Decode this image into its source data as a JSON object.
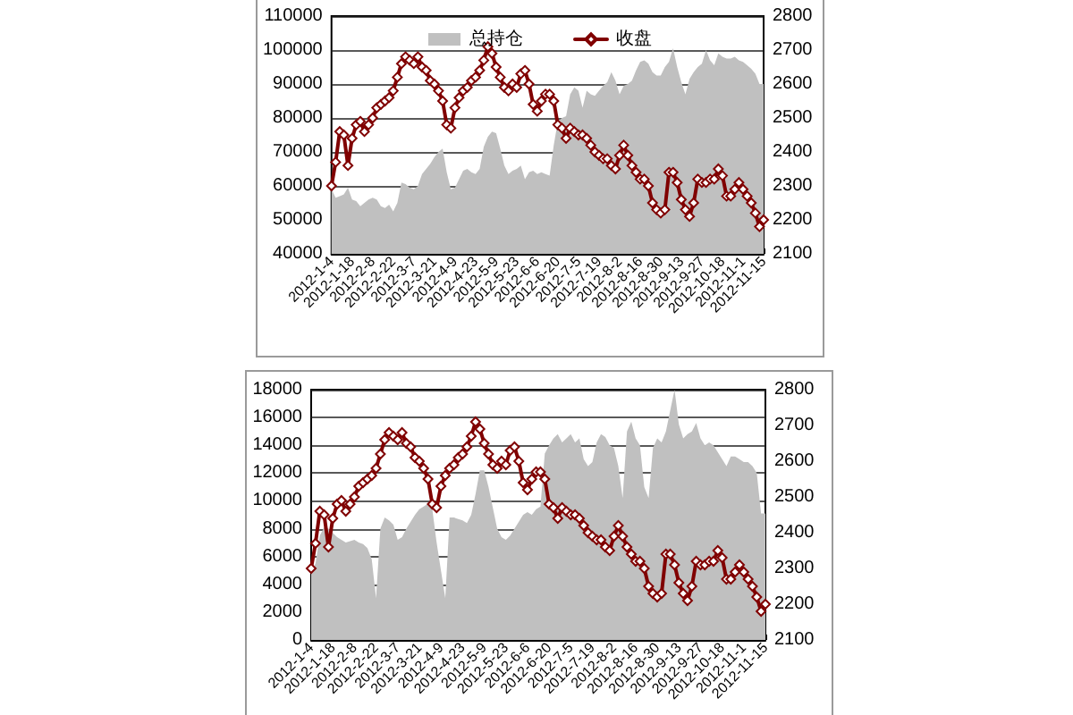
{
  "chart_data": [
    {
      "type": "area",
      "categories": [
        "2012-1-4",
        null,
        null,
        null,
        null,
        "2012-1-18",
        null,
        null,
        null,
        null,
        "2012-2-8",
        null,
        null,
        null,
        null,
        "2012-2-22",
        null,
        null,
        null,
        null,
        "2012-3-7",
        null,
        null,
        null,
        null,
        "2012-3-21",
        null,
        null,
        null,
        null,
        "2012-4-9",
        null,
        null,
        null,
        null,
        "2012-4-23",
        null,
        null,
        null,
        null,
        "2012-5-9",
        null,
        null,
        null,
        null,
        "2012-5-23",
        null,
        null,
        null,
        null,
        "2012-6-6",
        null,
        null,
        null,
        null,
        "2012-6-20",
        null,
        null,
        null,
        null,
        "2012-7-5",
        null,
        null,
        null,
        null,
        "2012-7-19",
        null,
        null,
        null,
        null,
        "2012-8-2",
        null,
        null,
        null,
        null,
        "2012-8-16",
        null,
        null,
        null,
        null,
        "2012-8-30",
        null,
        null,
        null,
        null,
        "2012-9-13",
        null,
        null,
        null,
        null,
        "2012-9-27",
        null,
        null,
        null,
        null,
        "2012-10-18",
        null,
        null,
        null,
        null,
        "2012-11-1",
        null,
        null,
        null,
        null,
        "2012-11-15"
      ],
      "ylim": [
        40000,
        110000
      ],
      "yticks": [
        40000,
        50000,
        60000,
        70000,
        80000,
        90000,
        100000,
        110000
      ],
      "y2lim": [
        2100,
        2800
      ],
      "y2ticks": [
        2100,
        2200,
        2300,
        2400,
        2500,
        2600,
        2700,
        2800
      ],
      "grid": "y",
      "legend": "top",
      "series": [
        {
          "name": "总持仓",
          "color": "#c0c0c0",
          "values": [
            59000,
            56500,
            57000,
            57500,
            59500,
            56000,
            55500,
            54000,
            55000,
            56000,
            56500,
            56000,
            54000,
            53500,
            54500,
            52500,
            55000,
            61000,
            60500,
            59500,
            59000,
            60000,
            63500,
            65000,
            66500,
            68500,
            70000,
            71000,
            64000,
            59000,
            59500,
            62000,
            64500,
            65000,
            64000,
            63500,
            65000,
            71500,
            74500,
            76000,
            75500,
            71000,
            66000,
            63500,
            64500,
            65000,
            66000,
            62000,
            64000,
            64500,
            63500,
            64000,
            63500,
            63000,
            72000,
            79000,
            80000,
            80500,
            87000,
            89000,
            88000,
            83000,
            88000,
            87000,
            86500,
            88000,
            89500,
            90500,
            93500,
            91000,
            87000,
            89500,
            90000,
            91000,
            94000,
            96500,
            97000,
            96000,
            93500,
            92500,
            92500,
            95000,
            96500,
            100500,
            95000,
            90500,
            87000,
            91500,
            93500,
            95000,
            96000,
            100000,
            97000,
            95500,
            99000,
            98000,
            97500,
            97500,
            98000,
            97000,
            96500,
            95500,
            94500,
            93000,
            90000,
            90000
          ]
        },
        {
          "name": "收盘",
          "type": "line",
          "axis": "y2",
          "marker": "diamond",
          "color": "#800000",
          "values": [
            2300,
            2370,
            2460,
            2450,
            2360,
            2440,
            2480,
            2490,
            2460,
            2480,
            2500,
            2530,
            2540,
            2550,
            2560,
            2580,
            2620,
            2660,
            2680,
            2670,
            2660,
            2680,
            2650,
            2640,
            2610,
            2600,
            2580,
            2550,
            2480,
            2470,
            2530,
            2560,
            2580,
            2590,
            2610,
            2620,
            2640,
            2670,
            2710,
            2690,
            2650,
            2620,
            2590,
            2580,
            2600,
            2590,
            2630,
            2640,
            2600,
            2540,
            2520,
            2550,
            2570,
            2570,
            2550,
            2480,
            2470,
            2440,
            2470,
            2460,
            2450,
            2450,
            2440,
            2420,
            2400,
            2390,
            2380,
            2380,
            2360,
            2350,
            2390,
            2420,
            2390,
            2360,
            2340,
            2320,
            2320,
            2300,
            2250,
            2230,
            2220,
            2230,
            2340,
            2340,
            2310,
            2260,
            2230,
            2210,
            2250,
            2320,
            2310,
            2310,
            2320,
            2320,
            2350,
            2330,
            2270,
            2270,
            2290,
            2310,
            2290,
            2270,
            2250,
            2220,
            2180,
            2200
          ]
        }
      ]
    },
    {
      "type": "area",
      "categories": [
        "2012-1-4",
        null,
        null,
        null,
        null,
        "2012-1-18",
        null,
        null,
        null,
        null,
        "2012-2-8",
        null,
        null,
        null,
        null,
        "2012-2-22",
        null,
        null,
        null,
        null,
        "2012-3-7",
        null,
        null,
        null,
        null,
        "2012-3-21",
        null,
        null,
        null,
        null,
        "2012-4-9",
        null,
        null,
        null,
        null,
        "2012-4-23",
        null,
        null,
        null,
        null,
        "2012-5-9",
        null,
        null,
        null,
        null,
        "2012-5-23",
        null,
        null,
        null,
        null,
        "2012-6-6",
        null,
        null,
        null,
        null,
        "2012-6-20",
        null,
        null,
        null,
        null,
        "2012-7-5",
        null,
        null,
        null,
        null,
        "2012-7-19",
        null,
        null,
        null,
        null,
        "2012-8-2",
        null,
        null,
        null,
        null,
        "2012-8-16",
        null,
        null,
        null,
        null,
        "2012-8-30",
        null,
        null,
        null,
        null,
        "2012-9-13",
        null,
        null,
        null,
        null,
        "2012-9-27",
        null,
        null,
        null,
        null,
        "2012-10-18",
        null,
        null,
        null,
        null,
        "2012-11-1",
        null,
        null,
        null,
        null,
        "2012-11-15"
      ],
      "ylim": [
        0,
        18000
      ],
      "yticks": [
        0,
        2000,
        4000,
        6000,
        8000,
        10000,
        12000,
        14000,
        16000,
        18000
      ],
      "y2lim": [
        2100,
        2800
      ],
      "y2ticks": [
        2100,
        2200,
        2300,
        2400,
        2500,
        2600,
        2700,
        2800
      ],
      "grid": "y",
      "series": [
        {
          "color": "#c0c0c0",
          "values": [
            4900,
            5500,
            7500,
            8100,
            8000,
            7700,
            7400,
            7200,
            7000,
            7100,
            7200,
            7000,
            6900,
            6600,
            5800,
            3000,
            8000,
            8800,
            8600,
            8300,
            7200,
            7400,
            8000,
            8500,
            9000,
            9400,
            9600,
            9800,
            9400,
            7000,
            5000,
            3000,
            8800,
            8800,
            8700,
            8600,
            8400,
            9000,
            10500,
            12200,
            12200,
            11000,
            9500,
            8000,
            7400,
            7200,
            7500,
            8000,
            8500,
            9000,
            9200,
            9000,
            9400,
            9600,
            13400,
            14000,
            14500,
            14800,
            14200,
            14500,
            14800,
            14200,
            14500,
            13000,
            12500,
            12800,
            14200,
            14800,
            14600,
            14000,
            13800,
            12500,
            10200,
            15000,
            15700,
            14500,
            14000,
            11000,
            10200,
            13800,
            14500,
            14200,
            15000,
            16500,
            18000,
            15500,
            14500,
            14800,
            15000,
            15600,
            14500,
            14000,
            14200,
            14000,
            13500,
            13000,
            12500,
            13200,
            13200,
            13000,
            12800,
            12800,
            12500,
            12000,
            9100,
            9100
          ]
        },
        {
          "type": "line",
          "axis": "y2",
          "marker": "diamond",
          "color": "#800000",
          "values": [
            2300,
            2370,
            2460,
            2450,
            2360,
            2440,
            2480,
            2490,
            2460,
            2480,
            2500,
            2530,
            2540,
            2550,
            2560,
            2580,
            2620,
            2660,
            2680,
            2670,
            2660,
            2680,
            2650,
            2640,
            2610,
            2600,
            2580,
            2550,
            2480,
            2470,
            2530,
            2560,
            2580,
            2590,
            2610,
            2620,
            2640,
            2670,
            2710,
            2690,
            2650,
            2620,
            2590,
            2580,
            2600,
            2590,
            2630,
            2640,
            2600,
            2540,
            2520,
            2550,
            2570,
            2570,
            2550,
            2480,
            2470,
            2440,
            2470,
            2460,
            2450,
            2450,
            2440,
            2420,
            2400,
            2390,
            2380,
            2380,
            2360,
            2350,
            2390,
            2420,
            2390,
            2360,
            2340,
            2320,
            2320,
            2300,
            2250,
            2230,
            2220,
            2230,
            2340,
            2340,
            2310,
            2260,
            2230,
            2210,
            2250,
            2320,
            2310,
            2310,
            2320,
            2320,
            2350,
            2330,
            2270,
            2270,
            2290,
            2310,
            2290,
            2270,
            2250,
            2220,
            2180,
            2200
          ]
        }
      ]
    }
  ]
}
